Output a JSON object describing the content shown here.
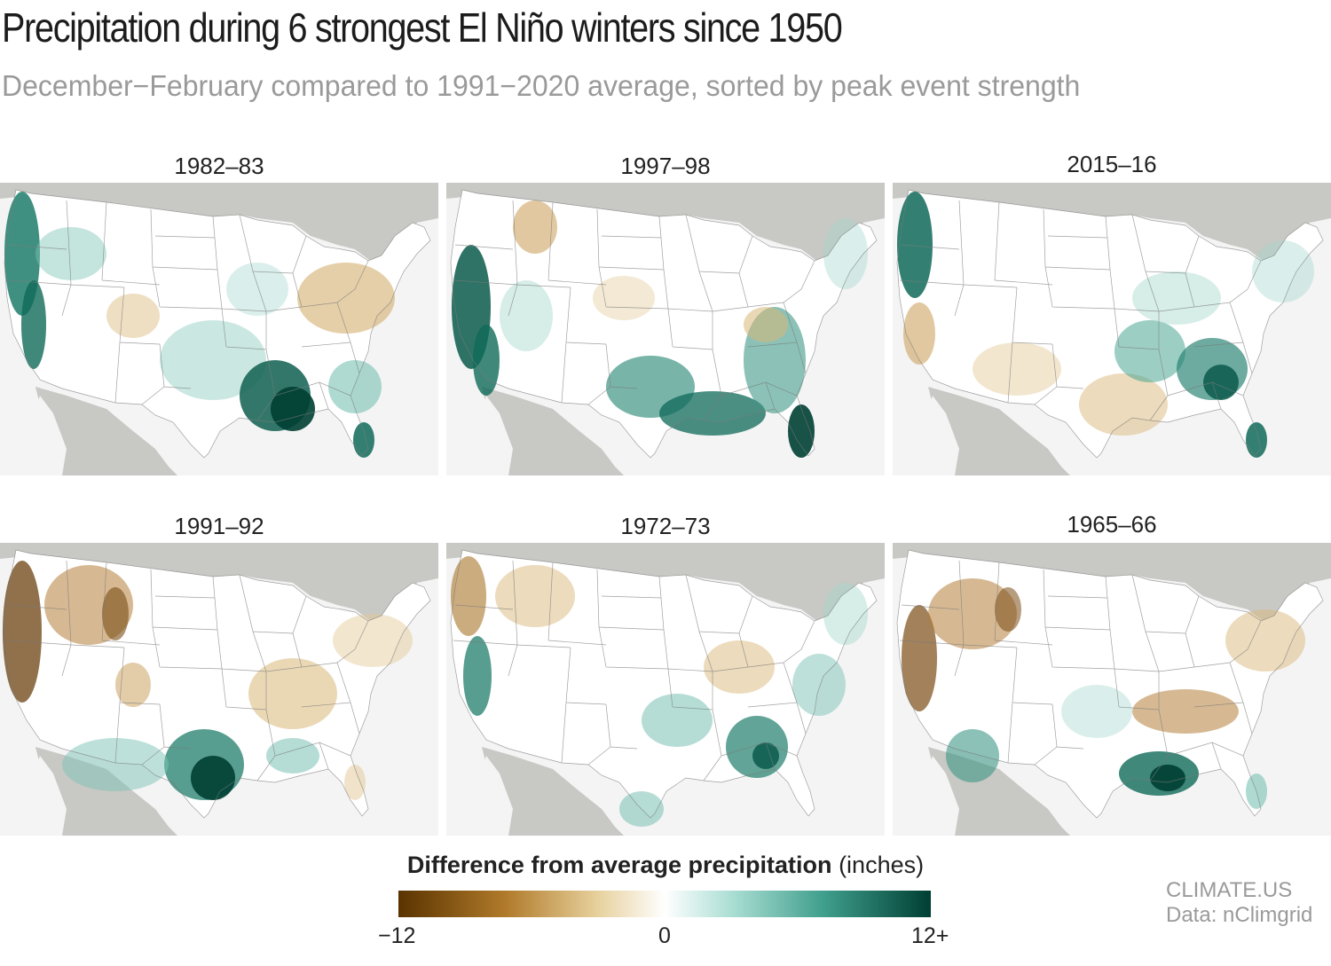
{
  "header": {
    "title": "Precipitation during 6 strongest El Niño winters since 1950",
    "subtitle": "December−February compared to 1991−2020 average, sorted by peak event strength"
  },
  "panels": [
    {
      "label": "1982–83"
    },
    {
      "label": "1997–98"
    },
    {
      "label": "2015–16"
    },
    {
      "label": "1991–92"
    },
    {
      "label": "1972–73"
    },
    {
      "label": "1965–66"
    }
  ],
  "legend": {
    "title_bold": "Difference from average precipitation",
    "title_unit": "(inches)",
    "min_label": "−12",
    "mid_label": "0",
    "max_label": "12+",
    "colors": [
      "#5a3300",
      "#b07a2a",
      "#e6cf9a",
      "#ffffff",
      "#a8ddd2",
      "#3f9e8c",
      "#003f33"
    ]
  },
  "credits": {
    "source_line1": "CLIMATE.US",
    "source_line2": "Data: nClimgrid"
  },
  "colors": {
    "land_outside": "#c8c8c4",
    "ocean": "#f4f4f4",
    "dry": "#a8742a",
    "wet": "#005a4b"
  }
}
